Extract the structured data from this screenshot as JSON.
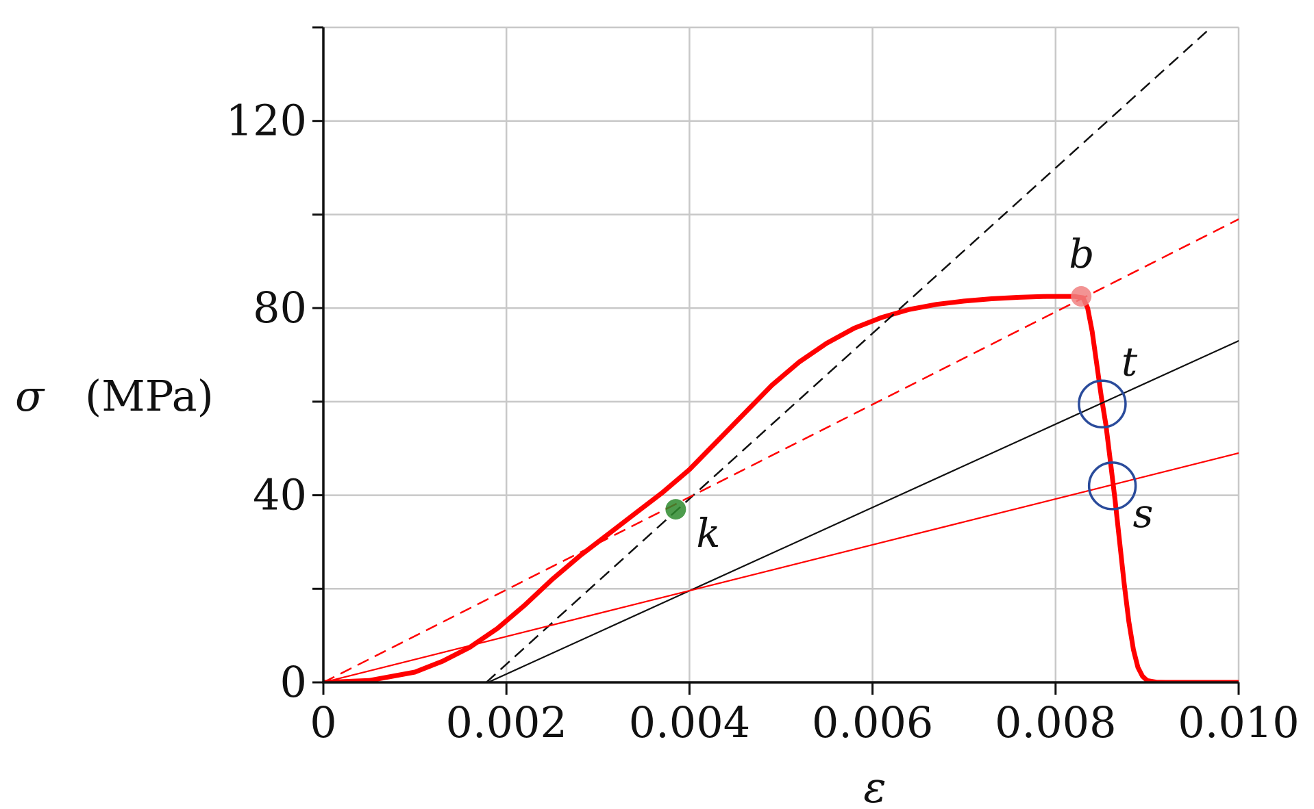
{
  "chart_data": {
    "type": "line",
    "title": "",
    "xlabel": "ε",
    "ylabel_symbol": "σ",
    "ylabel_unit": "(MPa)",
    "xlim": [
      0,
      0.01
    ],
    "ylim": [
      0,
      140
    ],
    "grid": true,
    "x_ticks": [
      {
        "value": 0,
        "label": "0"
      },
      {
        "value": 0.002,
        "label": "0.002"
      },
      {
        "value": 0.004,
        "label": "0.004"
      },
      {
        "value": 0.006,
        "label": "0.006"
      },
      {
        "value": 0.008,
        "label": "0.008"
      },
      {
        "value": 0.01,
        "label": "0.010"
      }
    ],
    "y_ticks": [
      {
        "value": 0,
        "label": "0"
      },
      {
        "value": 40,
        "label": "40"
      },
      {
        "value": 80,
        "label": "80"
      },
      {
        "value": 120,
        "label": "120"
      }
    ],
    "y_minor_ticks": [
      20,
      60,
      100,
      140
    ],
    "series": [
      {
        "style": "curve",
        "color": "#ff0000",
        "points": [
          [
            0,
            0
          ],
          [
            0.0005,
            0.4
          ],
          [
            0.001,
            2.2
          ],
          [
            0.0013,
            4.5
          ],
          [
            0.0016,
            7.5
          ],
          [
            0.0019,
            11.5
          ],
          [
            0.0022,
            16.5
          ],
          [
            0.0025,
            22
          ],
          [
            0.0028,
            27
          ],
          [
            0.0031,
            31.5
          ],
          [
            0.0034,
            36
          ],
          [
            0.0037,
            40.5
          ],
          [
            0.004,
            45.5
          ],
          [
            0.0043,
            51.5
          ],
          [
            0.0046,
            57.5
          ],
          [
            0.0049,
            63.5
          ],
          [
            0.0052,
            68.5
          ],
          [
            0.0055,
            72.5
          ],
          [
            0.0058,
            75.7
          ],
          [
            0.0061,
            78
          ],
          [
            0.0064,
            79.7
          ],
          [
            0.0067,
            80.8
          ],
          [
            0.007,
            81.5
          ],
          [
            0.0073,
            82
          ],
          [
            0.0076,
            82.3
          ],
          [
            0.0079,
            82.5
          ],
          [
            0.0082,
            82.5
          ],
          [
            0.0083,
            82.2
          ],
          [
            0.00835,
            80
          ],
          [
            0.0084,
            75
          ],
          [
            0.00845,
            68
          ],
          [
            0.0085,
            61
          ],
          [
            0.00855,
            55
          ],
          [
            0.0086,
            47
          ],
          [
            0.00865,
            39
          ],
          [
            0.0087,
            30
          ],
          [
            0.00875,
            21
          ],
          [
            0.0088,
            13
          ],
          [
            0.00885,
            7
          ],
          [
            0.0089,
            3.2
          ],
          [
            0.00895,
            1.3
          ],
          [
            0.009,
            0.4
          ],
          [
            0.0091,
            0.05
          ],
          [
            0.0092,
            0
          ],
          [
            0.01,
            0
          ]
        ]
      },
      {
        "style": "dashed",
        "color": "#111111",
        "points": [
          [
            0.00178,
            0
          ],
          [
            0.0097,
            140
          ]
        ]
      },
      {
        "style": "dashed",
        "color": "#ff0000",
        "points": [
          [
            0,
            0
          ],
          [
            0.01,
            99
          ]
        ]
      },
      {
        "style": "solid",
        "color": "#111111",
        "points": [
          [
            0.0018,
            0
          ],
          [
            0.01,
            73
          ]
        ]
      },
      {
        "style": "solid",
        "color": "#ff0000",
        "points": [
          [
            0,
            0
          ],
          [
            0.01,
            49
          ]
        ]
      }
    ],
    "annotations": [
      {
        "label": "b",
        "x": 0.00828,
        "y": 82.5,
        "marker": "dot",
        "color": "#f08080"
      },
      {
        "label": "k",
        "x": 0.00385,
        "y": 37,
        "marker": "dot",
        "color": "#2e8b2e"
      },
      {
        "label": "t",
        "x": 0.00851,
        "y": 59.5,
        "marker": "circle",
        "color": "#2a4b9b"
      },
      {
        "label": "s",
        "x": 0.00862,
        "y": 42,
        "marker": "circle",
        "color": "#2a4b9b"
      }
    ]
  }
}
